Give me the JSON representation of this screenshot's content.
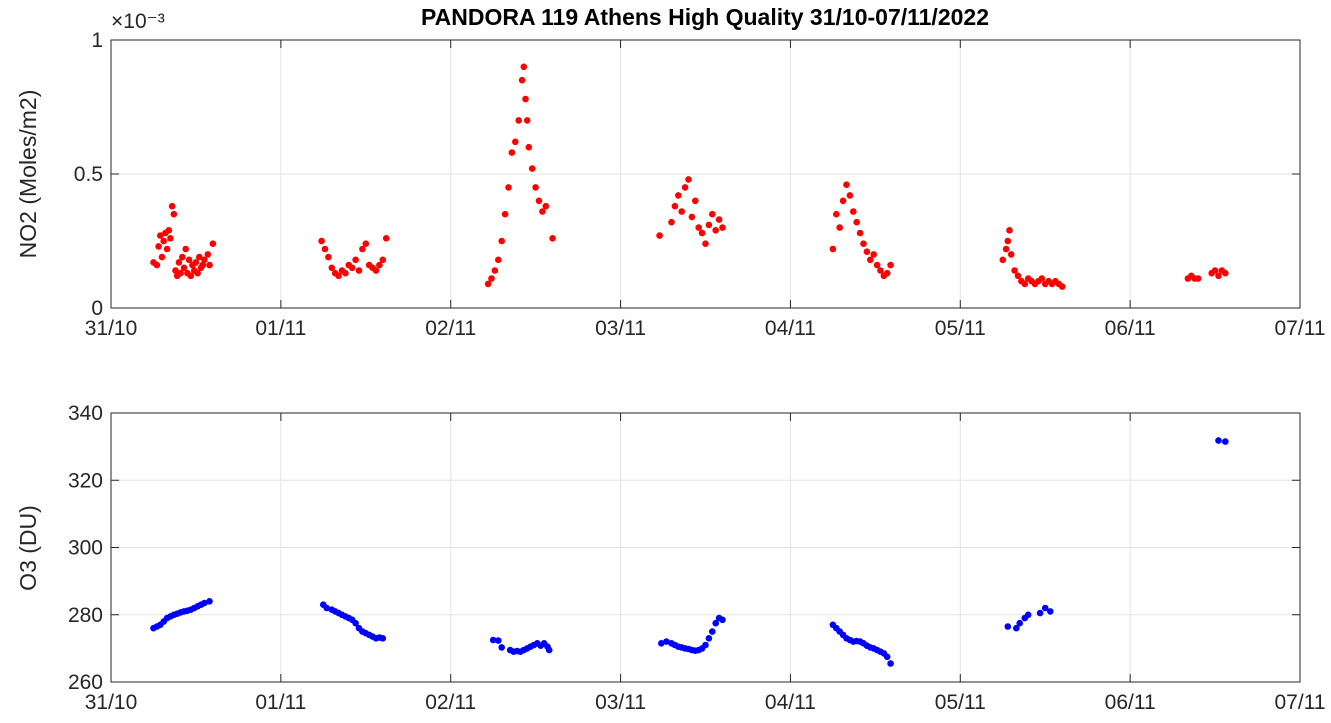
{
  "title": "PANDORA 119 Athens High Quality 31/10-07/11/2022",
  "chart_data": [
    {
      "type": "scatter",
      "ylabel": "NO2 (Moles/m2)",
      "y_exponent": "×10⁻³",
      "ylim": [
        0,
        0.001
      ],
      "xlim": [
        0,
        7
      ],
      "grid": true,
      "x_tick_labels": [
        "31/10",
        "01/11",
        "02/11",
        "03/11",
        "04/11",
        "05/11",
        "06/11",
        "07/11"
      ],
      "y_tick_labels": [
        "0",
        "0.5",
        "1"
      ],
      "color": "#ff0000",
      "series": [
        {
          "x": [
            0.25,
            0.27,
            0.28,
            0.29,
            0.3,
            0.31,
            0.32,
            0.33,
            0.34,
            0.35,
            0.36,
            0.37,
            0.38,
            0.39,
            0.4,
            0.41,
            0.42,
            0.43,
            0.44,
            0.45,
            0.46,
            0.47,
            0.48,
            0.49,
            0.5,
            0.51,
            0.52,
            0.53,
            0.54,
            0.55,
            0.57,
            0.58,
            0.6
          ],
          "y": [
            0.00017,
            0.00016,
            0.00023,
            0.00027,
            0.00019,
            0.00025,
            0.00028,
            0.00022,
            0.00029,
            0.00026,
            0.00038,
            0.00035,
            0.00014,
            0.00012,
            0.00017,
            0.00013,
            0.00019,
            0.00015,
            0.00022,
            0.00013,
            0.00018,
            0.00012,
            0.00016,
            0.00014,
            0.00017,
            0.00013,
            0.00019,
            0.00015,
            0.00016,
            0.00018,
            0.0002,
            0.00016,
            0.00024
          ]
        },
        {
          "x": [
            1.24,
            1.26,
            1.28,
            1.3,
            1.32,
            1.34,
            1.36,
            1.38,
            1.4,
            1.42,
            1.44,
            1.46,
            1.48,
            1.5,
            1.52,
            1.54,
            1.56,
            1.58,
            1.6,
            1.62
          ],
          "y": [
            0.00025,
            0.00022,
            0.00019,
            0.00015,
            0.00013,
            0.00012,
            0.00014,
            0.00013,
            0.00016,
            0.00015,
            0.00018,
            0.00014,
            0.00022,
            0.00024,
            0.00016,
            0.00015,
            0.00014,
            0.00016,
            0.00018,
            0.00026
          ]
        },
        {
          "x": [
            2.22,
            2.24,
            2.26,
            2.28,
            2.3,
            2.32,
            2.34,
            2.36,
            2.38,
            2.4,
            2.42,
            2.43,
            2.44,
            2.45,
            2.46,
            2.48,
            2.5,
            2.52,
            2.54,
            2.56,
            2.6
          ],
          "y": [
            9e-05,
            0.00011,
            0.00014,
            0.00018,
            0.00025,
            0.00035,
            0.00045,
            0.00058,
            0.00062,
            0.0007,
            0.00085,
            0.0009,
            0.00078,
            0.0007,
            0.0006,
            0.00052,
            0.00045,
            0.0004,
            0.00036,
            0.00038,
            0.00026
          ]
        },
        {
          "x": [
            3.23,
            3.3,
            3.32,
            3.34,
            3.36,
            3.38,
            3.4,
            3.42,
            3.44,
            3.46,
            3.48,
            3.5,
            3.52,
            3.54,
            3.56,
            3.58,
            3.6
          ],
          "y": [
            0.00027,
            0.00032,
            0.00038,
            0.00042,
            0.00036,
            0.00045,
            0.00048,
            0.00034,
            0.0004,
            0.0003,
            0.00028,
            0.00024,
            0.00031,
            0.00035,
            0.00029,
            0.00033,
            0.0003
          ]
        },
        {
          "x": [
            4.25,
            4.27,
            4.29,
            4.31,
            4.33,
            4.35,
            4.37,
            4.39,
            4.41,
            4.43,
            4.45,
            4.47,
            4.49,
            4.51,
            4.53,
            4.55,
            4.57,
            4.59
          ],
          "y": [
            0.00022,
            0.00035,
            0.0003,
            0.0004,
            0.00046,
            0.00042,
            0.00036,
            0.00032,
            0.00028,
            0.00024,
            0.00021,
            0.00018,
            0.0002,
            0.00016,
            0.00014,
            0.00012,
            0.00013,
            0.00016
          ]
        },
        {
          "x": [
            5.25,
            5.27,
            5.28,
            5.29,
            5.3,
            5.32,
            5.34,
            5.36,
            5.38,
            5.4,
            5.42,
            5.44,
            5.46,
            5.48,
            5.5,
            5.52,
            5.54,
            5.56,
            5.58,
            5.6
          ],
          "y": [
            0.00018,
            0.00022,
            0.00025,
            0.00029,
            0.0002,
            0.00014,
            0.00012,
            0.0001,
            9e-05,
            0.00011,
            0.0001,
            9e-05,
            0.0001,
            0.00011,
            9e-05,
            0.0001,
            9e-05,
            0.0001,
            9e-05,
            8e-05
          ]
        },
        {
          "x": [
            6.34,
            6.36,
            6.38,
            6.4,
            6.48,
            6.5,
            6.52,
            6.54,
            6.56
          ],
          "y": [
            0.00011,
            0.00012,
            0.00011,
            0.00011,
            0.00013,
            0.00014,
            0.00012,
            0.00014,
            0.00013
          ]
        }
      ]
    },
    {
      "type": "scatter",
      "ylabel": "O3 (DU)",
      "ylim": [
        260,
        340
      ],
      "xlim": [
        0,
        7
      ],
      "grid": true,
      "x_tick_labels": [
        "31/10",
        "01/11",
        "02/11",
        "03/11",
        "04/11",
        "05/11",
        "06/11",
        "07/11"
      ],
      "y_tick_labels": [
        "260",
        "280",
        "300",
        "320",
        "340"
      ],
      "color": "#0000ff",
      "series": [
        {
          "x": [
            0.25,
            0.27,
            0.29,
            0.31,
            0.33,
            0.35,
            0.37,
            0.39,
            0.41,
            0.43,
            0.45,
            0.47,
            0.49,
            0.51,
            0.53,
            0.55,
            0.58
          ],
          "y": [
            276,
            276.5,
            277,
            278,
            279,
            279.5,
            280,
            280.3,
            280.7,
            281,
            281.2,
            281.5,
            282,
            282.5,
            283,
            283.5,
            284
          ]
        },
        {
          "x": [
            1.25,
            1.27,
            1.3,
            1.32,
            1.34,
            1.36,
            1.38,
            1.4,
            1.42,
            1.44,
            1.46,
            1.48,
            1.5,
            1.52,
            1.54,
            1.56,
            1.58,
            1.6
          ],
          "y": [
            283,
            282,
            281.5,
            281,
            280.5,
            280,
            279.5,
            279,
            278.5,
            277.5,
            276,
            275,
            274.5,
            274,
            273.5,
            273,
            273.2,
            273
          ]
        },
        {
          "x": [
            2.25,
            2.28,
            2.3,
            2.35,
            2.37,
            2.39,
            2.41,
            2.43,
            2.45,
            2.47,
            2.49,
            2.51,
            2.53,
            2.55,
            2.57,
            2.58
          ],
          "y": [
            272.5,
            272.3,
            270.3,
            269.5,
            269,
            269.2,
            269,
            269.5,
            270,
            270.5,
            271,
            271.5,
            270.8,
            271.5,
            270.5,
            269.5
          ]
        },
        {
          "x": [
            3.24,
            3.27,
            3.3,
            3.32,
            3.34,
            3.36,
            3.38,
            3.4,
            3.42,
            3.44,
            3.46,
            3.48,
            3.5,
            3.52,
            3.54,
            3.56,
            3.58,
            3.6
          ],
          "y": [
            271.5,
            272,
            271.5,
            271,
            270.5,
            270.3,
            270,
            269.8,
            269.5,
            269.3,
            269.5,
            270,
            271,
            273,
            275,
            277.5,
            279,
            278.5
          ]
        },
        {
          "x": [
            4.25,
            4.27,
            4.29,
            4.31,
            4.33,
            4.35,
            4.37,
            4.39,
            4.41,
            4.43,
            4.45,
            4.47,
            4.49,
            4.51,
            4.53,
            4.55,
            4.57,
            4.59
          ],
          "y": [
            277,
            276,
            275,
            274,
            273,
            272.5,
            272,
            272.2,
            272,
            271.5,
            270.8,
            270.3,
            270,
            269.5,
            269,
            268.5,
            267.5,
            265.5
          ]
        },
        {
          "x": [
            5.28,
            5.33,
            5.35,
            5.38,
            5.4,
            5.47,
            5.5,
            5.53
          ],
          "y": [
            276.5,
            276,
            277.5,
            279,
            280,
            280.5,
            282,
            281
          ]
        },
        {
          "x": [
            6.52,
            6.56
          ],
          "y": [
            331.8,
            331.5
          ]
        }
      ]
    }
  ]
}
